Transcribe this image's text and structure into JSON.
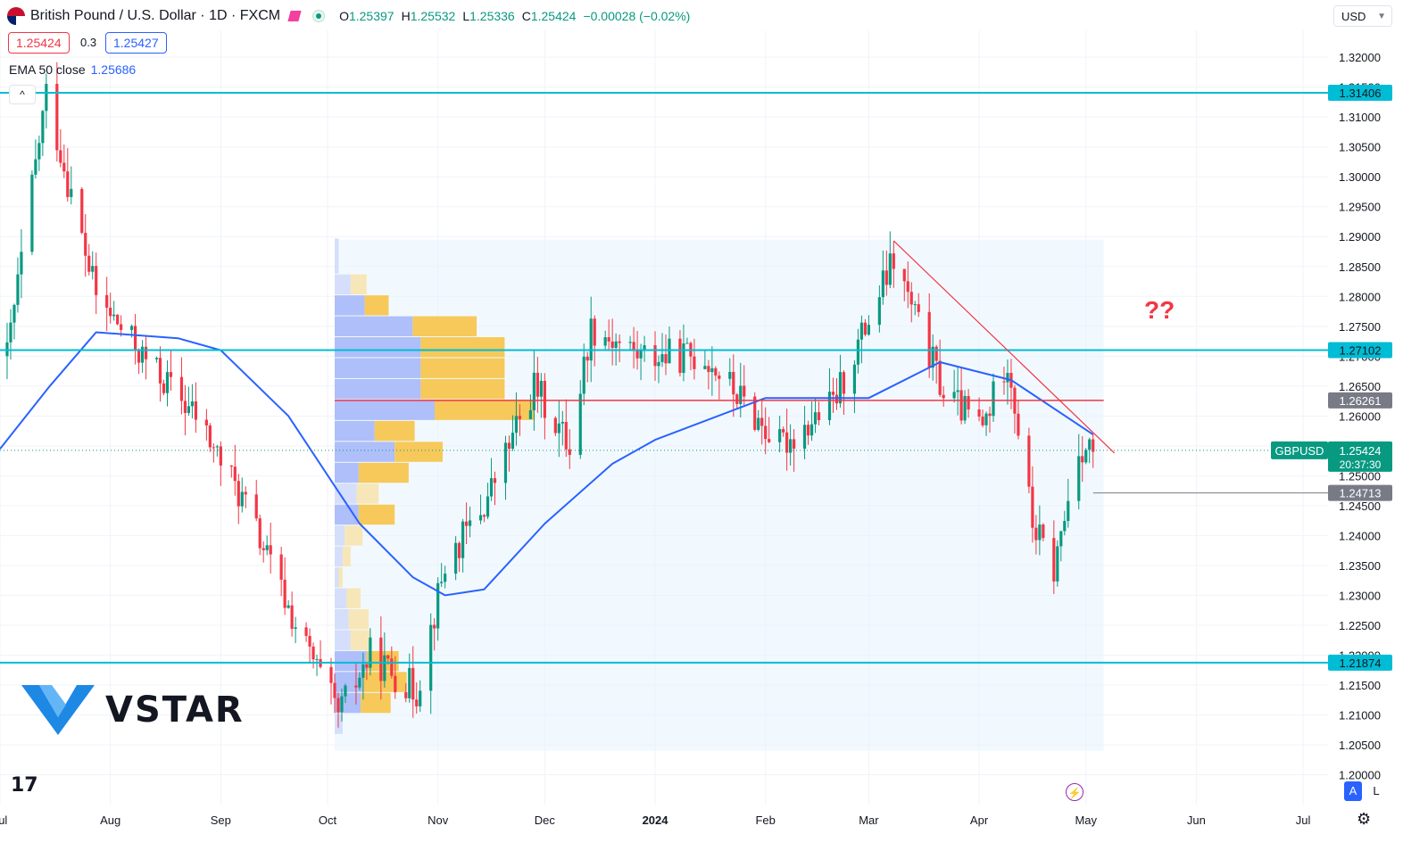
{
  "header": {
    "symbol": "British Pound / U.S. Dollar · 1D · FXCM",
    "ohlc": [
      {
        "label": "O",
        "value": "1.25397"
      },
      {
        "label": "H",
        "value": "1.25532"
      },
      {
        "label": "L",
        "value": "1.25336"
      },
      {
        "label": "C",
        "value": "1.25424"
      },
      {
        "label": "",
        "value": "−0.00028 (−0.02%)"
      }
    ],
    "bid": "1.25424",
    "spread": "0.3",
    "ask": "1.25427",
    "indicator_label": "EMA 50 close",
    "indicator_value": "1.25686",
    "currency": "USD"
  },
  "annotation_text": "??",
  "brand": "VSTAR",
  "toolbar": {
    "auto_label": "A",
    "log_label": "L"
  },
  "colors": {
    "up": "#089981",
    "down": "#f23645",
    "ema": "#2962ff",
    "hline": "#00bcd4",
    "poc": "#f23645",
    "trend": "#f23645"
  },
  "chart_data": {
    "type": "candlestick",
    "title": "British Pound / U.S. Dollar · 1D · FXCM",
    "ylim": [
      1.195,
      1.3245
    ],
    "y_ticks": [
      "1.20000",
      "1.20500",
      "1.21000",
      "1.21500",
      "1.22000",
      "1.22500",
      "1.23000",
      "1.23500",
      "1.24000",
      "1.24500",
      "1.25000",
      "1.25500",
      "1.26000",
      "1.26500",
      "1.27000",
      "1.27500",
      "1.28000",
      "1.28500",
      "1.29000",
      "1.29500",
      "1.30000",
      "1.30500",
      "1.31000",
      "1.31500",
      "1.32000"
    ],
    "x_ticks": [
      {
        "label": "Jul",
        "date": "2023-07-01",
        "bold": false
      },
      {
        "label": "Aug",
        "date": "2023-08-01",
        "bold": false
      },
      {
        "label": "Sep",
        "date": "2023-09-01",
        "bold": false
      },
      {
        "label": "Oct",
        "date": "2023-10-01",
        "bold": false
      },
      {
        "label": "Nov",
        "date": "2023-11-01",
        "bold": false
      },
      {
        "label": "Dec",
        "date": "2023-12-01",
        "bold": false
      },
      {
        "label": "2024",
        "date": "2024-01-01",
        "bold": true
      },
      {
        "label": "Feb",
        "date": "2024-02-01",
        "bold": false
      },
      {
        "label": "Mar",
        "date": "2024-03-01",
        "bold": false
      },
      {
        "label": "Apr",
        "date": "2024-04-01",
        "bold": false
      },
      {
        "label": "May",
        "date": "2024-05-01",
        "bold": false
      },
      {
        "label": "Jun",
        "date": "2024-06-01",
        "bold": false
      },
      {
        "label": "Jul",
        "date": "2024-07-01",
        "bold": false
      }
    ],
    "x_range": [
      "2023-07-01",
      "2024-07-08"
    ],
    "anchors": [
      {
        "date": "2023-07-03",
        "price": 1.27
      },
      {
        "date": "2023-07-14",
        "price": 1.314
      },
      {
        "date": "2023-07-28",
        "price": 1.28
      },
      {
        "date": "2023-08-10",
        "price": 1.27
      },
      {
        "date": "2023-08-25",
        "price": 1.26
      },
      {
        "date": "2023-09-08",
        "price": 1.245
      },
      {
        "date": "2023-09-22",
        "price": 1.225
      },
      {
        "date": "2023-10-04",
        "price": 1.21
      },
      {
        "date": "2023-10-13",
        "price": 1.22
      },
      {
        "date": "2023-10-26",
        "price": 1.214
      },
      {
        "date": "2023-11-03",
        "price": 1.235
      },
      {
        "date": "2023-11-14",
        "price": 1.245
      },
      {
        "date": "2023-11-28",
        "price": 1.265
      },
      {
        "date": "2023-12-08",
        "price": 1.255
      },
      {
        "date": "2023-12-14",
        "price": 1.275
      },
      {
        "date": "2023-12-28",
        "price": 1.27
      },
      {
        "date": "2024-01-15",
        "price": 1.27
      },
      {
        "date": "2024-02-05",
        "price": 1.255
      },
      {
        "date": "2024-02-20",
        "price": 1.262
      },
      {
        "date": "2024-03-08",
        "price": 1.286
      },
      {
        "date": "2024-03-22",
        "price": 1.264
      },
      {
        "date": "2024-04-02",
        "price": 1.258
      },
      {
        "date": "2024-04-09",
        "price": 1.27
      },
      {
        "date": "2024-04-16",
        "price": 1.242
      },
      {
        "date": "2024-04-22",
        "price": 1.234
      },
      {
        "date": "2024-04-29",
        "price": 1.255
      },
      {
        "date": "2024-05-03",
        "price": 1.2542
      }
    ],
    "ema_anchors": [
      {
        "date": "2023-07-01",
        "price": 1.2545
      },
      {
        "date": "2023-07-15",
        "price": 1.265
      },
      {
        "date": "2023-07-28",
        "price": 1.274
      },
      {
        "date": "2023-08-20",
        "price": 1.273
      },
      {
        "date": "2023-09-01",
        "price": 1.271
      },
      {
        "date": "2023-09-20",
        "price": 1.26
      },
      {
        "date": "2023-10-10",
        "price": 1.242
      },
      {
        "date": "2023-10-25",
        "price": 1.233
      },
      {
        "date": "2023-11-03",
        "price": 1.23
      },
      {
        "date": "2023-11-14",
        "price": 1.231
      },
      {
        "date": "2023-12-01",
        "price": 1.242
      },
      {
        "date": "2023-12-20",
        "price": 1.252
      },
      {
        "date": "2024-01-01",
        "price": 1.256
      },
      {
        "date": "2024-02-01",
        "price": 1.263
      },
      {
        "date": "2024-03-01",
        "price": 1.263
      },
      {
        "date": "2024-03-21",
        "price": 1.269
      },
      {
        "date": "2024-04-10",
        "price": 1.266
      },
      {
        "date": "2024-05-03",
        "price": 1.2569
      }
    ],
    "horizontal_levels": [
      {
        "price": 1.31406,
        "label": "1.31406",
        "kind": "support_resistance"
      },
      {
        "price": 1.27102,
        "label": "1.27102",
        "kind": "support_resistance"
      },
      {
        "price": 1.21874,
        "label": "1.21874",
        "kind": "support_resistance"
      }
    ],
    "poc_level": {
      "price": 1.26261,
      "label": "1.26261",
      "start": "2023-10-03",
      "end": "2024-05-06"
    },
    "low_level": {
      "price": 1.24713,
      "label": "1.24713",
      "start": "2024-05-03"
    },
    "current_price": {
      "symbol": "GBPUSD",
      "price": 1.25424,
      "label": "1.25424",
      "countdown": "20:37:30"
    },
    "trendline": {
      "start": {
        "date": "2024-03-08",
        "price": 1.2893
      },
      "end": {
        "date": "2024-05-06",
        "price": 1.2535
      }
    },
    "volume_profile": {
      "start": "2023-10-03",
      "end": "2024-05-06",
      "price_range": [
        1.204,
        1.2895
      ],
      "bins": [
        {
          "price": 1.2085,
          "base": 0.04,
          "extra": 0.0
        },
        {
          "price": 1.212,
          "base": 0.13,
          "extra": 0.15
        },
        {
          "price": 1.2155,
          "base": 0.14,
          "extra": 0.22
        },
        {
          "price": 1.219,
          "base": 0.16,
          "extra": 0.16
        },
        {
          "price": 1.2225,
          "base": 0.08,
          "extra": 0.1
        },
        {
          "price": 1.226,
          "base": 0.07,
          "extra": 0.1
        },
        {
          "price": 1.2295,
          "base": 0.06,
          "extra": 0.07
        },
        {
          "price": 1.233,
          "base": 0.02,
          "extra": 0.02
        },
        {
          "price": 1.2365,
          "base": 0.04,
          "extra": 0.04
        },
        {
          "price": 1.24,
          "base": 0.05,
          "extra": 0.09
        },
        {
          "price": 1.2435,
          "base": 0.12,
          "extra": 0.18
        },
        {
          "price": 1.247,
          "base": 0.11,
          "extra": 0.11
        },
        {
          "price": 1.2505,
          "base": 0.12,
          "extra": 0.25
        },
        {
          "price": 1.254,
          "base": 0.3,
          "extra": 0.24
        },
        {
          "price": 1.2575,
          "base": 0.2,
          "extra": 0.2
        },
        {
          "price": 1.261,
          "base": 0.5,
          "extra": 0.5
        },
        {
          "price": 1.2645,
          "base": 0.43,
          "extra": 0.42
        },
        {
          "price": 1.268,
          "base": 0.43,
          "extra": 0.42
        },
        {
          "price": 1.2715,
          "base": 0.43,
          "extra": 0.42
        },
        {
          "price": 1.275,
          "base": 0.39,
          "extra": 0.32
        },
        {
          "price": 1.2785,
          "base": 0.15,
          "extra": 0.12
        },
        {
          "price": 1.282,
          "base": 0.08,
          "extra": 0.08
        },
        {
          "price": 1.2855,
          "base": 0.02,
          "extra": 0.0
        },
        {
          "price": 1.288,
          "base": 0.02,
          "extra": 0.0
        }
      ]
    }
  }
}
